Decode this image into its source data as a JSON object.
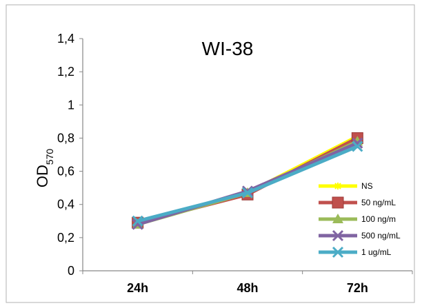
{
  "chart_data": {
    "type": "line",
    "title": "WI-38",
    "ylabel": "OD",
    "ylabel_sub": "570",
    "xlabel": "",
    "categories": [
      "24h",
      "48h",
      "72h"
    ],
    "ylim": [
      0,
      1.4
    ],
    "yticks": [
      "0",
      "0,2",
      "0,4",
      "0,6",
      "0,8",
      "1",
      "1,2",
      "1,4"
    ],
    "ytick_values": [
      0,
      0.2,
      0.4,
      0.6,
      0.8,
      1.0,
      1.2,
      1.4
    ],
    "grid": false,
    "legend_position": "bottom-right",
    "series": [
      {
        "name": "NS",
        "values": [
          0.29,
          0.47,
          0.81
        ],
        "color": "#ffff00",
        "marker": "star"
      },
      {
        "name": "50 ng/mL",
        "values": [
          0.29,
          0.46,
          0.8
        ],
        "color": "#c0504d",
        "marker": "square"
      },
      {
        "name": "100 ng/m",
        "values": [
          0.28,
          0.47,
          0.78
        ],
        "color": "#9bbb59",
        "marker": "triangle"
      },
      {
        "name": "500 ng/mL",
        "values": [
          0.28,
          0.48,
          0.77
        ],
        "color": "#8064a2",
        "marker": "x"
      },
      {
        "name": "1 ug/mL",
        "values": [
          0.3,
          0.47,
          0.75
        ],
        "color": "#4bacc6",
        "marker": "x"
      }
    ]
  }
}
